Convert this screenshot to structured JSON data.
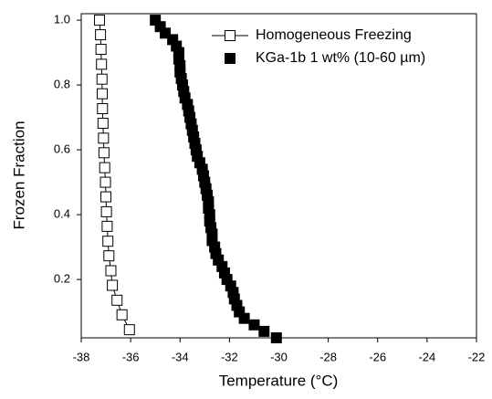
{
  "chart_data": {
    "type": "scatter",
    "xlabel": "Temperature (°C)",
    "ylabel": "Frozen Fraction",
    "xlim": [
      -38,
      -22
    ],
    "xticks": [
      -38,
      -36,
      -34,
      -32,
      -30,
      -28,
      -26,
      -24,
      -22
    ],
    "ylim": [
      0.02,
      1.02
    ],
    "yticks": [
      0.2,
      0.4,
      0.6,
      0.8,
      {
        "value": 1,
        "label": "1.0"
      }
    ],
    "grid": false,
    "legend": "upper right",
    "series": [
      {
        "name": "Homogeneous Freezing",
        "color": "#000000",
        "marker": "open-square",
        "line": true,
        "x": [
          -37.26,
          -37.22,
          -37.2,
          -37.18,
          -37.16,
          -37.15,
          -37.14,
          -37.12,
          -37.1,
          -37.08,
          -37.05,
          -37.02,
          -37.0,
          -36.98,
          -36.95,
          -36.92,
          -36.88,
          -36.8,
          -36.74,
          -36.55,
          -36.35,
          -36.05
        ],
        "values": [
          1.0,
          0.955,
          0.91,
          0.864,
          0.818,
          0.773,
          0.727,
          0.682,
          0.636,
          0.591,
          0.545,
          0.5,
          0.455,
          0.409,
          0.364,
          0.318,
          0.273,
          0.227,
          0.182,
          0.136,
          0.091,
          0.045
        ]
      },
      {
        "name": "KGa-1b 1 wt% (10-60 µm)",
        "color": "#000000",
        "marker": "filled-square",
        "line": false,
        "x": [
          -35.0,
          -34.8,
          -34.6,
          -34.3,
          -34.15,
          -34.05,
          -34.05,
          -34.0,
          -34.0,
          -33.95,
          -33.9,
          -33.85,
          -33.8,
          -33.7,
          -33.65,
          -33.6,
          -33.55,
          -33.5,
          -33.45,
          -33.4,
          -33.35,
          -33.3,
          -33.2,
          -33.1,
          -33.05,
          -33.0,
          -32.95,
          -32.9,
          -32.85,
          -32.85,
          -32.8,
          -32.8,
          -32.75,
          -32.7,
          -32.7,
          -32.6,
          -32.55,
          -32.45,
          -32.3,
          -32.2,
          -32.1,
          -31.95,
          -31.85,
          -31.8,
          -31.7,
          -31.6,
          -31.4,
          -31.0,
          -30.6,
          -30.1
        ],
        "values": [
          1.0,
          0.98,
          0.96,
          0.94,
          0.92,
          0.9,
          0.88,
          0.86,
          0.84,
          0.82,
          0.8,
          0.78,
          0.76,
          0.74,
          0.72,
          0.7,
          0.68,
          0.66,
          0.64,
          0.62,
          0.6,
          0.58,
          0.56,
          0.54,
          0.52,
          0.5,
          0.48,
          0.46,
          0.44,
          0.42,
          0.4,
          0.38,
          0.36,
          0.34,
          0.32,
          0.3,
          0.28,
          0.26,
          0.24,
          0.22,
          0.2,
          0.18,
          0.16,
          0.14,
          0.12,
          0.1,
          0.08,
          0.06,
          0.04,
          0.02
        ]
      }
    ]
  }
}
